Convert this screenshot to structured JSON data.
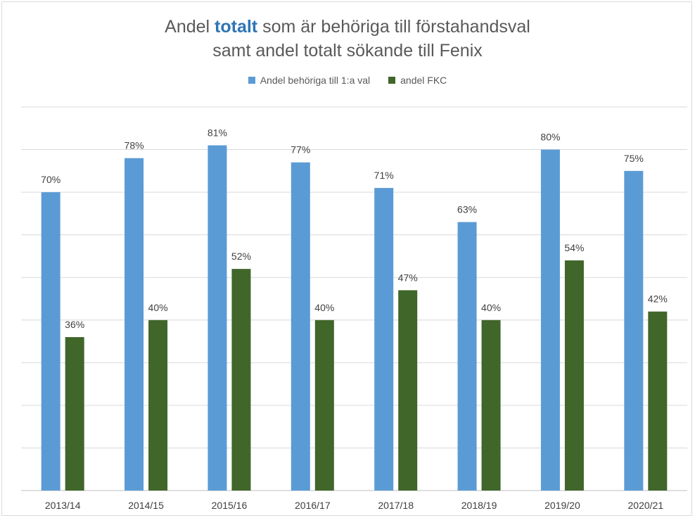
{
  "chart_data": {
    "type": "bar",
    "title_parts": [
      "Andel ",
      "totalt",
      " som är behöriga till förstahandsval"
    ],
    "title_line2": "samt andel totalt sökande till Fenix",
    "categories": [
      "2013/14",
      "2014/15",
      "2015/16",
      "2016/17",
      "2017/18",
      "2018/19",
      "2019/20",
      "2020/21"
    ],
    "series": [
      {
        "name": "Andel behöriga till 1:a val",
        "color": "#5b9bd5",
        "values": [
          70,
          78,
          81,
          77,
          71,
          63,
          80,
          75
        ],
        "labels": [
          "70%",
          "78%",
          "81%",
          "77%",
          "71%",
          "63%",
          "80%",
          "75%"
        ]
      },
      {
        "name": "andel FKC",
        "color": "#40662a",
        "values": [
          36,
          40,
          52,
          40,
          47,
          40,
          54,
          42
        ],
        "labels": [
          "36%",
          "40%",
          "52%",
          "40%",
          "47%",
          "40%",
          "54%",
          "42%"
        ]
      }
    ],
    "ylim": [
      0,
      90
    ],
    "ytick_step": 10,
    "grid": true,
    "legend_position": "top"
  }
}
